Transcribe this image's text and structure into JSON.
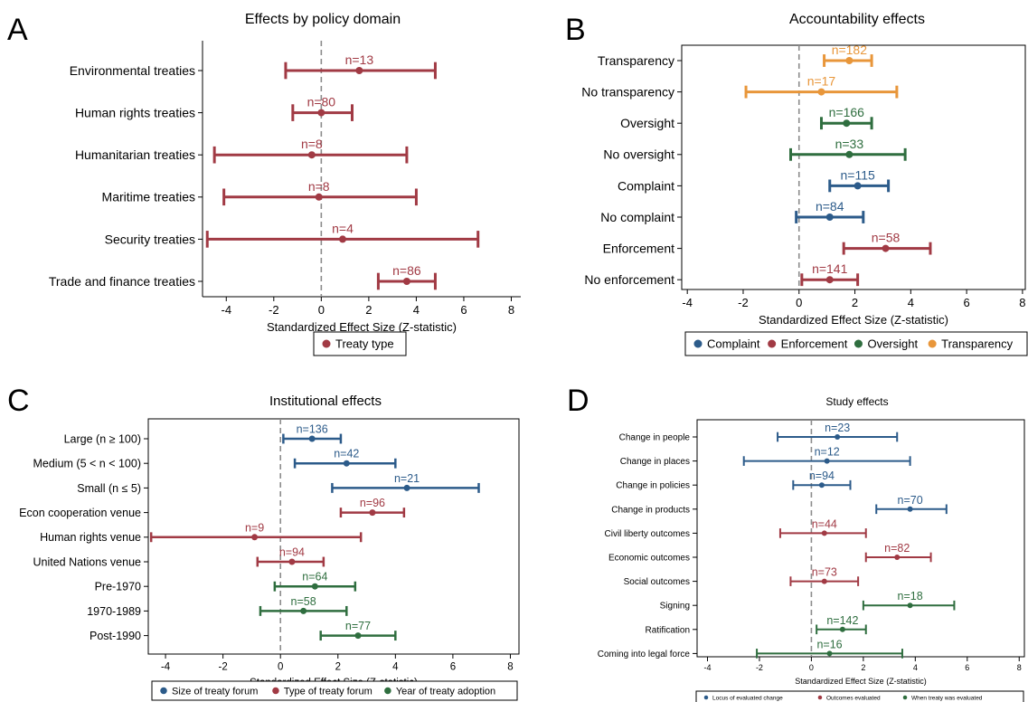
{
  "colors": {
    "blue": "#2c5b8a",
    "red": "#a13a44",
    "green": "#2f6e3f",
    "orange": "#e8963a",
    "zero_line": "#8c8c8c"
  },
  "chart_data": [
    {
      "panel_letter": "A",
      "type": "dot-whisker",
      "title": "Effects by policy domain",
      "xlabel": "Standardized Effect Size (Z-statistic)",
      "xlim": [
        -5,
        8.4
      ],
      "xticks": [
        -4,
        -2,
        0,
        2,
        4,
        6,
        8
      ],
      "zero_line": "dashed",
      "legend": [
        {
          "label": "Treaty type",
          "color": "red"
        }
      ],
      "legend_position": "bottom",
      "rows": [
        {
          "label": "Environmental treaties",
          "n_label": "n=13",
          "estimate": 1.6,
          "low": -1.5,
          "high": 4.8,
          "color": "red"
        },
        {
          "label": "Human rights treaties",
          "n_label": "n=80",
          "estimate": 0.0,
          "low": -1.2,
          "high": 1.3,
          "color": "red"
        },
        {
          "label": "Humanitarian treaties",
          "n_label": "n=8",
          "estimate": -0.4,
          "low": -4.5,
          "high": 3.6,
          "color": "red"
        },
        {
          "label": "Maritime treaties",
          "n_label": "n=8",
          "estimate": -0.1,
          "low": -4.1,
          "high": 4.0,
          "color": "red"
        },
        {
          "label": "Security treaties",
          "n_label": "n=4",
          "estimate": 0.9,
          "low": -4.8,
          "high": 6.6,
          "color": "red"
        },
        {
          "label": "Trade and finance treaties",
          "n_label": "n=86",
          "estimate": 3.6,
          "low": 2.4,
          "high": 4.8,
          "color": "red"
        }
      ]
    },
    {
      "panel_letter": "B",
      "type": "dot-whisker",
      "title": "Accountability effects",
      "xlabel": "Standardized Effect Size (Z-statistic)",
      "xlim": [
        -4.2,
        8.1
      ],
      "xticks": [
        -4,
        -2,
        0,
        2,
        4,
        6,
        8
      ],
      "zero_line": "dashed",
      "legend": [
        {
          "label": "Complaint",
          "color": "blue"
        },
        {
          "label": "Enforcement",
          "color": "red"
        },
        {
          "label": "Oversight",
          "color": "green"
        },
        {
          "label": "Transparency",
          "color": "orange"
        }
      ],
      "legend_position": "bottom",
      "rows": [
        {
          "label": "Transparency",
          "n_label": "n=182",
          "estimate": 1.8,
          "low": 0.9,
          "high": 2.6,
          "color": "orange"
        },
        {
          "label": "No transparency",
          "n_label": "n=17",
          "estimate": 0.8,
          "low": -1.9,
          "high": 3.5,
          "color": "orange"
        },
        {
          "label": "Oversight",
          "n_label": "n=166",
          "estimate": 1.7,
          "low": 0.8,
          "high": 2.6,
          "color": "green"
        },
        {
          "label": "No oversight",
          "n_label": "n=33",
          "estimate": 1.8,
          "low": -0.3,
          "high": 3.8,
          "color": "green"
        },
        {
          "label": "Complaint",
          "n_label": "n=115",
          "estimate": 2.1,
          "low": 1.1,
          "high": 3.2,
          "color": "blue"
        },
        {
          "label": "No complaint",
          "n_label": "n=84",
          "estimate": 1.1,
          "low": -0.1,
          "high": 2.3,
          "color": "blue"
        },
        {
          "label": "Enforcement",
          "n_label": "n=58",
          "estimate": 3.1,
          "low": 1.6,
          "high": 4.7,
          "color": "red"
        },
        {
          "label": "No enforcement",
          "n_label": "n=141",
          "estimate": 1.1,
          "low": 0.1,
          "high": 2.1,
          "color": "red"
        }
      ]
    },
    {
      "panel_letter": "C",
      "type": "dot-whisker",
      "title": "Institutional effects",
      "xlabel": "Standardized Effect Size (Z-statistic)",
      "xlim": [
        -4.6,
        8.3
      ],
      "xticks": [
        -4,
        -2,
        0,
        2,
        4,
        6,
        8
      ],
      "zero_line": "dashed",
      "legend": [
        {
          "label": "Size of treaty forum",
          "color": "blue"
        },
        {
          "label": "Type of treaty forum",
          "color": "red"
        },
        {
          "label": "Year of treaty adoption",
          "color": "green"
        }
      ],
      "legend_position": "bottom",
      "rows": [
        {
          "label": "Large (n ≥ 100)",
          "n_label": "n=136",
          "estimate": 1.1,
          "low": 0.1,
          "high": 2.1,
          "color": "blue"
        },
        {
          "label": "Medium (5 < n < 100)",
          "n_label": "n=42",
          "estimate": 2.3,
          "low": 0.5,
          "high": 4.0,
          "color": "blue"
        },
        {
          "label": "Small (n ≤ 5)",
          "n_label": "n=21",
          "estimate": 4.4,
          "low": 1.8,
          "high": 6.9,
          "color": "blue"
        },
        {
          "label": "Econ cooperation venue",
          "n_label": "n=96",
          "estimate": 3.2,
          "low": 2.1,
          "high": 4.3,
          "color": "red"
        },
        {
          "label": "Human rights venue",
          "n_label": "n=9",
          "estimate": -0.9,
          "low": -4.5,
          "high": 2.8,
          "color": "red"
        },
        {
          "label": "United Nations venue",
          "n_label": "n=94",
          "estimate": 0.4,
          "low": -0.8,
          "high": 1.5,
          "color": "red"
        },
        {
          "label": "Pre-1970",
          "n_label": "n=64",
          "estimate": 1.2,
          "low": -0.2,
          "high": 2.6,
          "color": "green"
        },
        {
          "label": "1970-1989",
          "n_label": "n=58",
          "estimate": 0.8,
          "low": -0.7,
          "high": 2.3,
          "color": "green"
        },
        {
          "label": "Post-1990",
          "n_label": "n=77",
          "estimate": 2.7,
          "low": 1.4,
          "high": 4.0,
          "color": "green"
        }
      ]
    },
    {
      "panel_letter": "D",
      "type": "dot-whisker",
      "title": "Study effects",
      "xlabel": "Standardized Effect Size (Z-statistic)",
      "xlim": [
        -4.4,
        8.2
      ],
      "xticks": [
        -4,
        -2,
        0,
        2,
        4,
        6,
        8
      ],
      "zero_line": "dashed",
      "legend": [
        {
          "label": "Locus of evaluated change",
          "color": "blue"
        },
        {
          "label": "Outcomes evaluated",
          "color": "red"
        },
        {
          "label": "When treaty was evaluated",
          "color": "green"
        }
      ],
      "legend_position": "bottom",
      "rows": [
        {
          "label": "Change in people",
          "n_label": "n=23",
          "estimate": 1.0,
          "low": -1.3,
          "high": 3.3,
          "color": "blue"
        },
        {
          "label": "Change in places",
          "n_label": "n=12",
          "estimate": 0.6,
          "low": -2.6,
          "high": 3.8,
          "color": "blue"
        },
        {
          "label": "Change in policies",
          "n_label": "n=94",
          "estimate": 0.4,
          "low": -0.7,
          "high": 1.5,
          "color": "blue"
        },
        {
          "label": "Change in products",
          "n_label": "n=70",
          "estimate": 3.8,
          "low": 2.5,
          "high": 5.2,
          "color": "blue"
        },
        {
          "label": "Civil liberty outcomes",
          "n_label": "n=44",
          "estimate": 0.5,
          "low": -1.2,
          "high": 2.1,
          "color": "red"
        },
        {
          "label": "Economic outcomes",
          "n_label": "n=82",
          "estimate": 3.3,
          "low": 2.1,
          "high": 4.6,
          "color": "red"
        },
        {
          "label": "Social outcomes",
          "n_label": "n=73",
          "estimate": 0.5,
          "low": -0.8,
          "high": 1.8,
          "color": "red"
        },
        {
          "label": "Signing",
          "n_label": "n=18",
          "estimate": 3.8,
          "low": 2.0,
          "high": 5.5,
          "color": "green"
        },
        {
          "label": "Ratification",
          "n_label": "n=142",
          "estimate": 1.2,
          "low": 0.2,
          "high": 2.1,
          "color": "green"
        },
        {
          "label": "Coming into legal force",
          "n_label": "n=16",
          "estimate": 0.7,
          "low": -2.1,
          "high": 3.5,
          "color": "green"
        }
      ]
    }
  ]
}
